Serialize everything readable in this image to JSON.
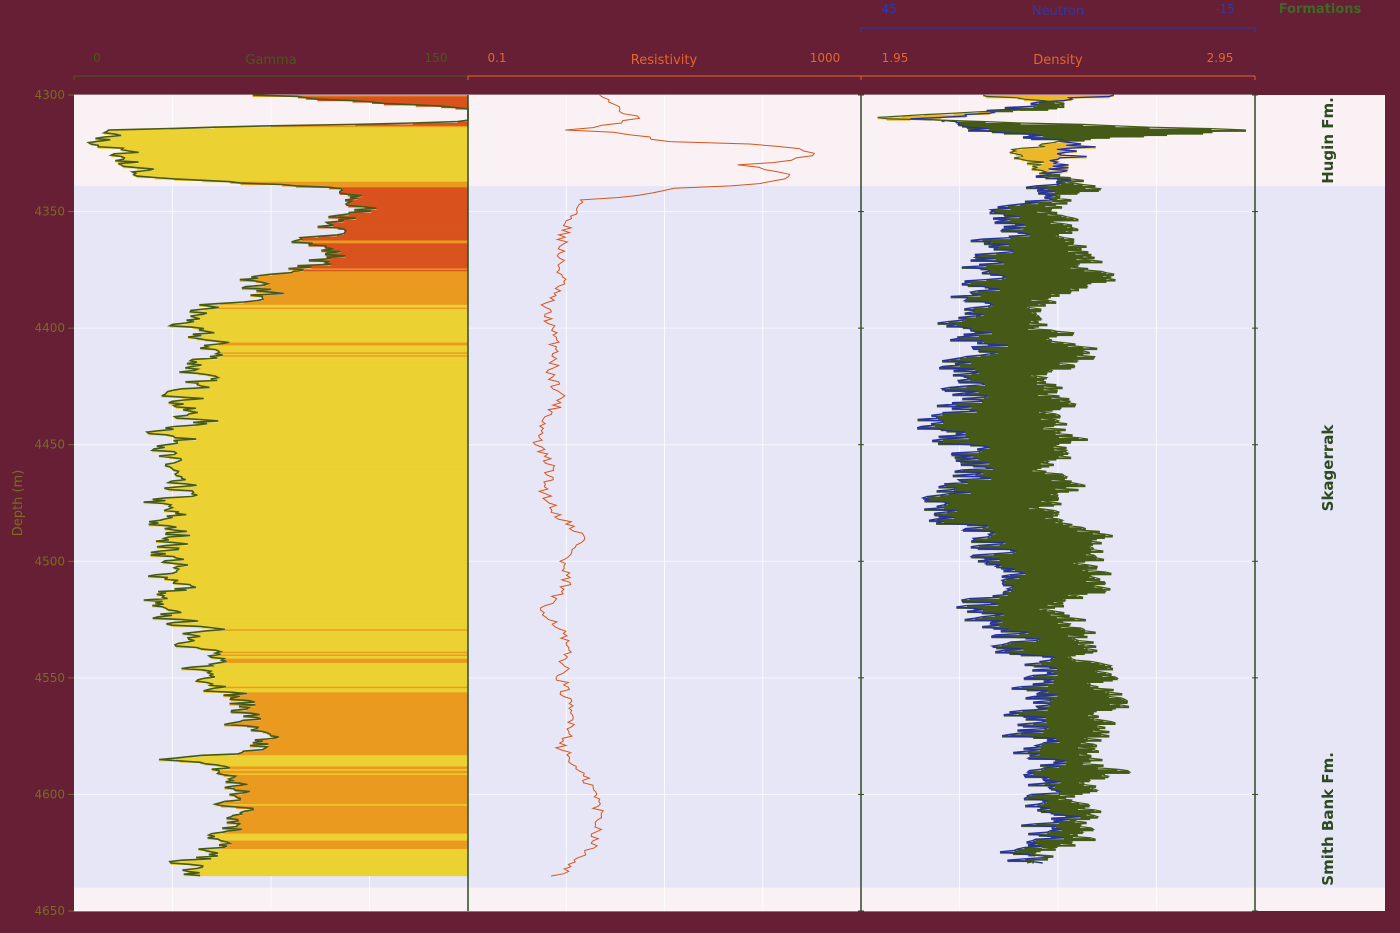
{
  "colors": {
    "background": "#661f35",
    "panel": "#f9f1f3",
    "band": "#e6e6f6",
    "gamma_curve": "#455a17",
    "gamma_fill_high": "#d9531e",
    "gamma_fill_mid": "#ea9a1e",
    "gamma_fill_low": "#ecd132",
    "resistivity": "#d9531e",
    "neutron": "#27339a",
    "density": "#455a17",
    "density_cross_fill": "#ecb82a",
    "formations_text": "#2f4a22"
  },
  "chart_data": {
    "type": "line",
    "depth_axis": {
      "label": "Depth (m)",
      "range": [
        4300,
        4650
      ],
      "ticks": [
        "4300",
        "4350",
        "4400",
        "4450",
        "4500",
        "4550",
        "4600",
        "4650"
      ]
    },
    "tracks": [
      {
        "name": "Gamma",
        "min_label": "0",
        "max_label": "150",
        "range": [
          0,
          150
        ],
        "color": "#455a17",
        "fill": "shaded toward right edge",
        "points": [
          [
            4300,
            75
          ],
          [
            4310,
            200
          ],
          [
            4315,
            8
          ],
          [
            4320,
            10
          ],
          [
            4325,
            18
          ],
          [
            4330,
            22
          ],
          [
            4335,
            28
          ],
          [
            4340,
            97
          ],
          [
            4345,
            105
          ],
          [
            4350,
            110
          ],
          [
            4355,
            100
          ],
          [
            4360,
            92
          ],
          [
            4365,
            95
          ],
          [
            4370,
            100
          ],
          [
            4375,
            82
          ],
          [
            4380,
            68
          ],
          [
            4385,
            75
          ],
          [
            4390,
            50
          ],
          [
            4395,
            45
          ],
          [
            4400,
            40
          ],
          [
            4405,
            50
          ],
          [
            4410,
            55
          ],
          [
            4415,
            48
          ],
          [
            4420,
            46
          ],
          [
            4425,
            44
          ],
          [
            4430,
            45
          ],
          [
            4435,
            40
          ],
          [
            4440,
            48
          ],
          [
            4445,
            35
          ],
          [
            4450,
            44
          ],
          [
            4455,
            30
          ],
          [
            4460,
            38
          ],
          [
            4465,
            32
          ],
          [
            4470,
            42
          ],
          [
            4475,
            30
          ],
          [
            4480,
            36
          ],
          [
            4485,
            32
          ],
          [
            4490,
            42
          ],
          [
            4495,
            35
          ],
          [
            4500,
            38
          ],
          [
            4505,
            33
          ],
          [
            4510,
            45
          ],
          [
            4515,
            30
          ],
          [
            4520,
            28
          ],
          [
            4525,
            38
          ],
          [
            4530,
            50
          ],
          [
            4535,
            48
          ],
          [
            4540,
            52
          ],
          [
            4545,
            46
          ],
          [
            4550,
            55
          ],
          [
            4555,
            60
          ],
          [
            4560,
            62
          ],
          [
            4565,
            68
          ],
          [
            4570,
            62
          ],
          [
            4575,
            68
          ],
          [
            4580,
            70
          ],
          [
            4585,
            42
          ],
          [
            4590,
            55
          ],
          [
            4595,
            62
          ],
          [
            4600,
            60
          ],
          [
            4605,
            62
          ],
          [
            4610,
            68
          ],
          [
            4615,
            62
          ],
          [
            4620,
            55
          ],
          [
            4625,
            48
          ],
          [
            4630,
            42
          ],
          [
            4635,
            45
          ]
        ]
      },
      {
        "name": "Resistivity",
        "min_label": "0.1",
        "max_label": "1000",
        "scale": "log",
        "range": [
          0.1,
          1000
        ],
        "color": "#d9531e",
        "points": [
          [
            4300,
            2.5
          ],
          [
            4305,
            3.2
          ],
          [
            4310,
            5.0
          ],
          [
            4315,
            1.0
          ],
          [
            4320,
            10
          ],
          [
            4325,
            350
          ],
          [
            4330,
            60
          ],
          [
            4335,
            200
          ],
          [
            4340,
            12
          ],
          [
            4345,
            1.5
          ],
          [
            4350,
            1.2
          ],
          [
            4360,
            0.95
          ],
          [
            4370,
            0.85
          ],
          [
            4380,
            0.9
          ],
          [
            4390,
            0.6
          ],
          [
            4400,
            0.7
          ],
          [
            4410,
            0.8
          ],
          [
            4420,
            0.7
          ],
          [
            4430,
            0.9
          ],
          [
            4440,
            0.6
          ],
          [
            4450,
            0.5
          ],
          [
            4460,
            0.7
          ],
          [
            4470,
            0.6
          ],
          [
            4480,
            0.8
          ],
          [
            4490,
            1.5
          ],
          [
            4500,
            0.9
          ],
          [
            4510,
            1.0
          ],
          [
            4520,
            0.55
          ],
          [
            4530,
            0.9
          ],
          [
            4540,
            1.0
          ],
          [
            4550,
            0.9
          ],
          [
            4560,
            1.0
          ],
          [
            4570,
            1.2
          ],
          [
            4580,
            0.9
          ],
          [
            4590,
            1.3
          ],
          [
            4600,
            2.0
          ],
          [
            4610,
            2.2
          ],
          [
            4620,
            2.0
          ],
          [
            4630,
            1.2
          ],
          [
            4635,
            0.8
          ]
        ]
      },
      {
        "name": "Density",
        "min_label": "1.95",
        "max_label": "2.95",
        "range": [
          1.95,
          2.95
        ],
        "color": "#455a17",
        "points": [
          [
            4300,
            2.3
          ],
          [
            4305,
            2.5
          ],
          [
            4310,
            1.96
          ],
          [
            4315,
            2.95
          ],
          [
            4320,
            2.4
          ],
          [
            4325,
            2.35
          ],
          [
            4330,
            2.38
          ],
          [
            4340,
            2.52
          ],
          [
            4345,
            2.45
          ],
          [
            4350,
            2.42
          ],
          [
            4360,
            2.48
          ],
          [
            4370,
            2.52
          ],
          [
            4380,
            2.56
          ],
          [
            4390,
            2.38
          ],
          [
            4400,
            2.42
          ],
          [
            4410,
            2.55
          ],
          [
            4420,
            2.4
          ],
          [
            4430,
            2.45
          ],
          [
            4440,
            2.42
          ],
          [
            4450,
            2.5
          ],
          [
            4460,
            2.44
          ],
          [
            4470,
            2.48
          ],
          [
            4480,
            2.4
          ],
          [
            4490,
            2.6
          ],
          [
            4500,
            2.52
          ],
          [
            4510,
            2.56
          ],
          [
            4520,
            2.44
          ],
          [
            4530,
            2.5
          ],
          [
            4540,
            2.52
          ],
          [
            4550,
            2.55
          ],
          [
            4560,
            2.6
          ],
          [
            4570,
            2.56
          ],
          [
            4580,
            2.52
          ],
          [
            4590,
            2.58
          ],
          [
            4600,
            2.48
          ],
          [
            4610,
            2.52
          ],
          [
            4620,
            2.5
          ],
          [
            4625,
            2.4
          ],
          [
            4630,
            2.42
          ]
        ]
      },
      {
        "name": "Neutron",
        "min_label": "45",
        "max_label": "-15",
        "range": [
          45,
          -15
        ],
        "color": "#27339a",
        "points": [
          [
            4300,
            10
          ],
          [
            4305,
            18
          ],
          [
            4310,
            35
          ],
          [
            4315,
            28
          ],
          [
            4320,
            12
          ],
          [
            4325,
            11
          ],
          [
            4330,
            14
          ],
          [
            4340,
            18
          ],
          [
            4345,
            20
          ],
          [
            4350,
            22
          ],
          [
            4360,
            24
          ],
          [
            4370,
            26
          ],
          [
            4380,
            28
          ],
          [
            4390,
            30
          ],
          [
            4400,
            28
          ],
          [
            4410,
            26
          ],
          [
            4420,
            30
          ],
          [
            4430,
            27
          ],
          [
            4440,
            34
          ],
          [
            4450,
            30
          ],
          [
            4460,
            27
          ],
          [
            4470,
            30
          ],
          [
            4480,
            32
          ],
          [
            4490,
            25
          ],
          [
            4500,
            24
          ],
          [
            4510,
            22
          ],
          [
            4520,
            28
          ],
          [
            4530,
            22
          ],
          [
            4540,
            20
          ],
          [
            4550,
            18
          ],
          [
            4560,
            18
          ],
          [
            4570,
            20
          ],
          [
            4580,
            18
          ],
          [
            4590,
            16
          ],
          [
            4600,
            18
          ],
          [
            4610,
            16
          ],
          [
            4620,
            18
          ],
          [
            4625,
            20
          ],
          [
            4630,
            19
          ]
        ]
      }
    ],
    "formations": {
      "title": "Formations",
      "zones": [
        {
          "name": "Hugin Fm.",
          "top": 4300,
          "bottom": 4339
        },
        {
          "name": "Skagerrak",
          "top": 4339,
          "bottom": 4581
        },
        {
          "name": "Smith Bank Fm.",
          "top": 4581,
          "bottom": 4640
        }
      ]
    }
  }
}
